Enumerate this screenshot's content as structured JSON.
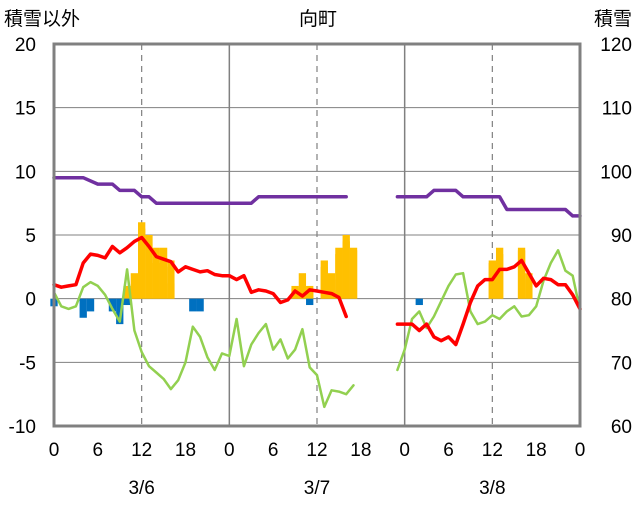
{
  "chart_data": {
    "type": "bar+line",
    "title": "向町",
    "left_axis_label": "積雪以外",
    "right_axis_label": "積雪",
    "left_ylim": [
      -10,
      20
    ],
    "left_yticks": [
      "20",
      "15",
      "10",
      "5",
      "0",
      "-5",
      "-10"
    ],
    "left_ytick_values": [
      20,
      15,
      10,
      5,
      0,
      -5,
      -10
    ],
    "right_ylim": [
      60,
      120
    ],
    "right_yticks": [
      "120",
      "110",
      "100",
      "90",
      "80",
      "70",
      "60"
    ],
    "right_ytick_values": [
      120,
      110,
      100,
      90,
      80,
      70,
      60
    ],
    "x_range_hours": [
      0,
      72
    ],
    "x_tick_labels": [
      "0",
      "6",
      "12",
      "18",
      "0",
      "6",
      "12",
      "18",
      "0",
      "6",
      "12",
      "18",
      "0"
    ],
    "x_tick_hours": [
      0,
      6,
      12,
      18,
      24,
      30,
      36,
      42,
      48,
      54,
      60,
      66,
      72
    ],
    "date_labels": [
      {
        "text": "3/6",
        "hour": 12
      },
      {
        "text": "3/7",
        "hour": 36
      },
      {
        "text": "3/8",
        "hour": 60
      }
    ],
    "day_separators_hours": [
      24,
      48
    ],
    "dashed_gridlines_hours": [
      12,
      36,
      60
    ],
    "colors": {
      "snow_depth": "#7030a0",
      "temperature": "#ff0000",
      "green_series": "#92d050",
      "precip_bar": "#ffc000",
      "negative_bar": "#0070c0"
    },
    "series": [
      {
        "key": "snow_depth",
        "axis": "right",
        "points": [
          [
            0,
            99
          ],
          [
            4,
            99
          ],
          [
            6,
            98
          ],
          [
            8,
            98
          ],
          [
            9,
            97
          ],
          [
            11,
            97
          ],
          [
            12,
            96
          ],
          [
            13,
            96
          ],
          [
            14,
            95
          ],
          [
            20,
            95
          ],
          [
            21,
            95
          ],
          [
            27,
            95
          ],
          [
            28,
            96
          ],
          [
            40,
            96
          ],
          [
            41,
            null
          ],
          [
            47,
            null
          ],
          [
            47,
            96
          ],
          [
            51,
            96
          ],
          [
            52,
            97
          ],
          [
            55,
            97
          ],
          [
            56,
            96
          ],
          [
            61,
            96
          ],
          [
            62,
            94
          ],
          [
            70,
            94
          ],
          [
            71,
            93
          ],
          [
            72,
            93
          ]
        ]
      },
      {
        "key": "temperature",
        "axis": "left",
        "points": [
          [
            0,
            1.1
          ],
          [
            1,
            0.9
          ],
          [
            2,
            1
          ],
          [
            3,
            1.1
          ],
          [
            4,
            2.8
          ],
          [
            5,
            3.5
          ],
          [
            6,
            3.4
          ],
          [
            7,
            3.2
          ],
          [
            8,
            4.1
          ],
          [
            9,
            3.6
          ],
          [
            10,
            4
          ],
          [
            11,
            4.5
          ],
          [
            12,
            4.8
          ],
          [
            13,
            4.1
          ],
          [
            14,
            3.3
          ],
          [
            15,
            3.1
          ],
          [
            16,
            2.9
          ],
          [
            17,
            2.1
          ],
          [
            18,
            2.5
          ],
          [
            19,
            2.3
          ],
          [
            20,
            2.1
          ],
          [
            21,
            2.2
          ],
          [
            22,
            1.9
          ],
          [
            23,
            1.8
          ],
          [
            24,
            1.8
          ],
          [
            25,
            1.5
          ],
          [
            26,
            1.8
          ],
          [
            27,
            0.5
          ],
          [
            28,
            0.7
          ],
          [
            29,
            0.6
          ],
          [
            30,
            0.4
          ],
          [
            31,
            -0.3
          ],
          [
            32,
            -0.1
          ],
          [
            33,
            0.6
          ],
          [
            34,
            0.2
          ],
          [
            35,
            0.7
          ],
          [
            36,
            0.6
          ],
          [
            37,
            0.5
          ],
          [
            38,
            0.4
          ],
          [
            39,
            0.1
          ],
          [
            40,
            -1.4
          ],
          [
            41,
            null
          ],
          [
            47,
            null
          ],
          [
            47,
            -2
          ],
          [
            49,
            -2
          ],
          [
            50,
            -2.5
          ],
          [
            51,
            -2
          ],
          [
            52,
            -3
          ],
          [
            53,
            -3.3
          ],
          [
            54,
            -3
          ],
          [
            55,
            -3.6
          ],
          [
            56,
            -2
          ],
          [
            57,
            -0.3
          ],
          [
            58,
            1
          ],
          [
            59,
            1.5
          ],
          [
            60,
            1.5
          ],
          [
            61,
            2.3
          ],
          [
            62,
            2.3
          ],
          [
            63,
            2.5
          ],
          [
            64,
            3
          ],
          [
            65,
            2
          ],
          [
            66,
            1
          ],
          [
            67,
            1.6
          ],
          [
            68,
            1.5
          ],
          [
            69,
            1.1
          ],
          [
            70,
            1.1
          ],
          [
            71,
            0.3
          ],
          [
            72,
            -0.8
          ]
        ]
      },
      {
        "key": "green_series",
        "axis": "left",
        "points": [
          [
            0,
            0.5
          ],
          [
            1,
            -0.6
          ],
          [
            2,
            -0.8
          ],
          [
            3,
            -0.6
          ],
          [
            4,
            0.9
          ],
          [
            5,
            1.3
          ],
          [
            6,
            1.0
          ],
          [
            7,
            0.3
          ],
          [
            8,
            -0.8
          ],
          [
            9,
            -1.8
          ],
          [
            10,
            2.3
          ],
          [
            11,
            -2.5
          ],
          [
            12,
            -4.2
          ],
          [
            13,
            -5.3
          ],
          [
            14,
            -5.8
          ],
          [
            15,
            -6.3
          ],
          [
            16,
            -7.1
          ],
          [
            17,
            -6.4
          ],
          [
            18,
            -5
          ],
          [
            19,
            -2.2
          ],
          [
            20,
            -3
          ],
          [
            21,
            -4.6
          ],
          [
            22,
            -5.6
          ],
          [
            23,
            -4.3
          ],
          [
            24,
            -4.5
          ],
          [
            25,
            -1.6
          ],
          [
            26,
            -5.3
          ],
          [
            27,
            -3.6
          ],
          [
            28,
            -2.7
          ],
          [
            29,
            -2.0
          ],
          [
            30,
            -4.0
          ],
          [
            31,
            -3.2
          ],
          [
            32,
            -4.7
          ],
          [
            33,
            -4.0
          ],
          [
            34,
            -2.4
          ],
          [
            35,
            -5.4
          ],
          [
            36,
            -6
          ],
          [
            37,
            -8.5
          ],
          [
            38,
            -7.2
          ],
          [
            39,
            -7.3
          ],
          [
            40,
            -7.5
          ],
          [
            41,
            -6.8
          ],
          [
            41,
            null
          ],
          [
            47,
            null
          ],
          [
            47,
            -5.6
          ],
          [
            48,
            -4
          ],
          [
            49,
            -1.6
          ],
          [
            50,
            -1.0
          ],
          [
            51,
            -2.3
          ],
          [
            52,
            -1.4
          ],
          [
            53,
            -0.2
          ],
          [
            54,
            1.0
          ],
          [
            55,
            1.9
          ],
          [
            56,
            2.0
          ],
          [
            57,
            -1.0
          ],
          [
            58,
            -2.0
          ],
          [
            59,
            -1.8
          ],
          [
            60,
            -1.3
          ],
          [
            61,
            -1.6
          ],
          [
            62,
            -1.0
          ],
          [
            63,
            -0.6
          ],
          [
            64,
            -1.4
          ],
          [
            65,
            -1.3
          ],
          [
            66,
            -0.6
          ],
          [
            67,
            1.4
          ],
          [
            68,
            2.8
          ],
          [
            69,
            3.8
          ],
          [
            70,
            2.2
          ],
          [
            71,
            1.8
          ],
          [
            72,
            -0.9
          ]
        ]
      }
    ],
    "bars_positive": [
      [
        11,
        1.0
      ],
      [
        12,
        6.0
      ],
      [
        13,
        5.0
      ],
      [
        14,
        4.0
      ],
      [
        15,
        4.0
      ],
      [
        16,
        3.0
      ],
      [
        33,
        1.0
      ],
      [
        34,
        2.0
      ],
      [
        35,
        1.0
      ],
      [
        37,
        3.0
      ],
      [
        38,
        2.0
      ],
      [
        39,
        4.0
      ],
      [
        40,
        5.0
      ],
      [
        41,
        4.0
      ],
      [
        60,
        3.0
      ],
      [
        61,
        4.0
      ],
      [
        64,
        4.0
      ],
      [
        65,
        2.0
      ]
    ],
    "bars_pos_min": [
      [
        10,
        1.0
      ],
      [
        11,
        2.0
      ],
      [
        12,
        5.5
      ],
      [
        13,
        4.0
      ],
      [
        14,
        2.8
      ],
      [
        15,
        2.5
      ],
      [
        16,
        1.2
      ],
      [
        33,
        0.8
      ],
      [
        34,
        1.0
      ],
      [
        35,
        0.5
      ],
      [
        37,
        2.5
      ],
      [
        38,
        1.5
      ],
      [
        39,
        3.5
      ],
      [
        40,
        4.5
      ],
      [
        41,
        3.8
      ],
      [
        60,
        2.8
      ],
      [
        61,
        3.5
      ],
      [
        64,
        3.8
      ],
      [
        65,
        1.5
      ]
    ],
    "bars_negative": [
      [
        0,
        -0.6
      ],
      [
        4,
        -1.5
      ],
      [
        5,
        -1.0
      ],
      [
        8,
        -1.0
      ],
      [
        9,
        -2.0
      ],
      [
        10,
        -0.5
      ],
      [
        19,
        -1.0
      ],
      [
        20,
        -1.0
      ],
      [
        35,
        -0.5
      ],
      [
        50,
        -0.5
      ]
    ]
  }
}
